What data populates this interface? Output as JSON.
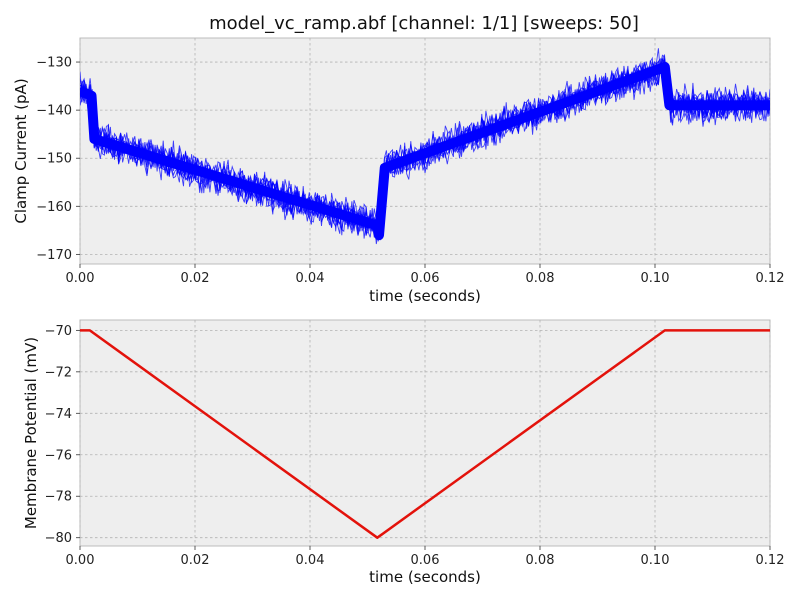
{
  "title": "model_vc_ramp.abf [channel: 1/1] [sweeps: 50]",
  "chart_data": [
    {
      "type": "line",
      "xlabel": "time (seconds)",
      "ylabel": "Clamp Current (pA)",
      "xlim": [
        0,
        0.12
      ],
      "ylim": [
        -172,
        -125
      ],
      "x_ticks": [
        0,
        0.02,
        0.04,
        0.06,
        0.08,
        0.1,
        0.12
      ],
      "x_tick_labels": [
        "0.00",
        "0.02",
        "0.04",
        "0.06",
        "0.08",
        "0.10",
        "0.12"
      ],
      "y_ticks": [
        -130,
        -140,
        -150,
        -160,
        -170
      ],
      "y_tick_labels": [
        "−130",
        "−140",
        "−150",
        "−160",
        "−170"
      ],
      "grid": true,
      "sweep_count": 50,
      "color": "#0000ff",
      "noise_band_pA": 3,
      "series": [
        {
          "x": [
            0,
            0.002,
            0.0025,
            0.0517,
            0.052,
            0.053,
            0.1017,
            0.1025,
            0.12
          ],
          "values": [
            -136,
            -137,
            -146,
            -164,
            -166,
            -152,
            -131,
            -139,
            -139
          ]
        }
      ]
    },
    {
      "type": "line",
      "xlabel": "time (seconds)",
      "ylabel": "Membrane Potential (mV)",
      "xlim": [
        0,
        0.12
      ],
      "ylim": [
        -80.4,
        -69.5
      ],
      "x_ticks": [
        0,
        0.02,
        0.04,
        0.06,
        0.08,
        0.1,
        0.12
      ],
      "x_tick_labels": [
        "0.00",
        "0.02",
        "0.04",
        "0.06",
        "0.08",
        "0.10",
        "0.12"
      ],
      "y_ticks": [
        -70,
        -72,
        -74,
        -76,
        -78,
        -80
      ],
      "y_tick_labels": [
        "−70",
        "−72",
        "−74",
        "−76",
        "−78",
        "−80"
      ],
      "grid": true,
      "color": "#e3120b",
      "series": [
        {
          "x": [
            0,
            0.0017,
            0.0517,
            0.1017,
            0.12
          ],
          "values": [
            -70,
            -70,
            -80,
            -70,
            -70
          ]
        }
      ]
    }
  ]
}
